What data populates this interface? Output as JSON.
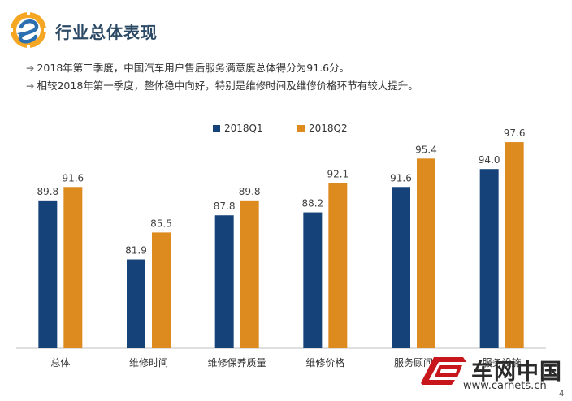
{
  "header": {
    "title": "行业总体表现"
  },
  "bullets": [
    "2018年第二季度，中国汽车用户售后服务满意度总体得分为91.6分。",
    "相较2018年第一季度，整体稳中向好，特别是维修时间及维修价格环节有较大提升。"
  ],
  "chart_data": {
    "type": "bar",
    "categories": [
      "总体",
      "维修时间",
      "维修保养质量",
      "维修价格",
      "服务顾问",
      "服务设施"
    ],
    "series": [
      {
        "name": "2018Q1",
        "values": [
          89.8,
          81.9,
          87.8,
          88.2,
          91.6,
          94.0
        ],
        "color": "#16427a"
      },
      {
        "name": "2018Q2",
        "values": [
          91.6,
          85.5,
          89.8,
          92.1,
          95.4,
          97.6
        ],
        "color": "#dd8a1e"
      }
    ],
    "ylim": [
      70,
      100
    ],
    "grid": false,
    "legend": "top-center",
    "value_labels": true
  },
  "watermark": {
    "name": "车网中国",
    "url": "www.carnets.cn"
  },
  "page_number": "4",
  "colors": {
    "accent": "#2c4a66",
    "q1": "#16427a",
    "q2": "#dd8a1e"
  }
}
